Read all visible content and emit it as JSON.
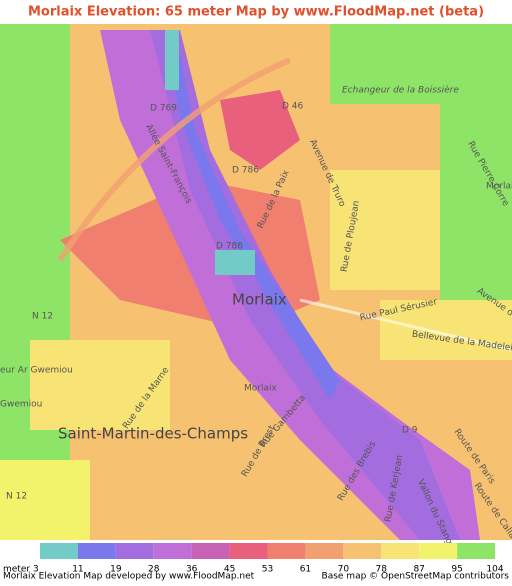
{
  "header": {
    "title": "Morlaix Elevation: 65 meter Map by www.FloodMap.net (beta)"
  },
  "map": {
    "labels": [
      "D 769",
      "D 46",
      "Echangeur de la Boissière",
      "Allée Saint-François",
      "D 786",
      "Rue Pierre Corre",
      "Avenue de Truro",
      "Rue de la Paix",
      "D 786",
      "Rue de Ploujean",
      "Morlaix",
      "Rue Paul Sérusier",
      "Avenue de la",
      "Bellevue de la Madeleine",
      "N 12",
      "eur Ar Gwemiou",
      "Gwemiou",
      "Rue de la Marne",
      "Morlaix",
      "Saint-Martin-des-Champs",
      "Rue Gambetta",
      "Rue de Brest",
      "Rue des Brebis",
      "D 9",
      "Route de Paris",
      "Route de Callac",
      "Vallon du Stang",
      "Rue de Kerjean",
      "N 12",
      "Morlaix"
    ]
  },
  "legend": {
    "unit": "meter",
    "ticks": [
      3,
      11,
      19,
      28,
      36,
      45,
      53,
      61,
      70,
      78,
      87,
      95,
      104
    ],
    "colors": [
      "#72cbc6",
      "#7b78ee",
      "#a36ddf",
      "#c06fd9",
      "#c762b4",
      "#e9607c",
      "#f07f6f",
      "#f3a070",
      "#f6c271",
      "#f8e474",
      "#f2f36b",
      "#8ee466"
    ]
  },
  "footer": {
    "left": "Morlaix Elevation Map developed by www.FloodMap.net",
    "right": "Base map © OpenStreetMap contributors"
  }
}
